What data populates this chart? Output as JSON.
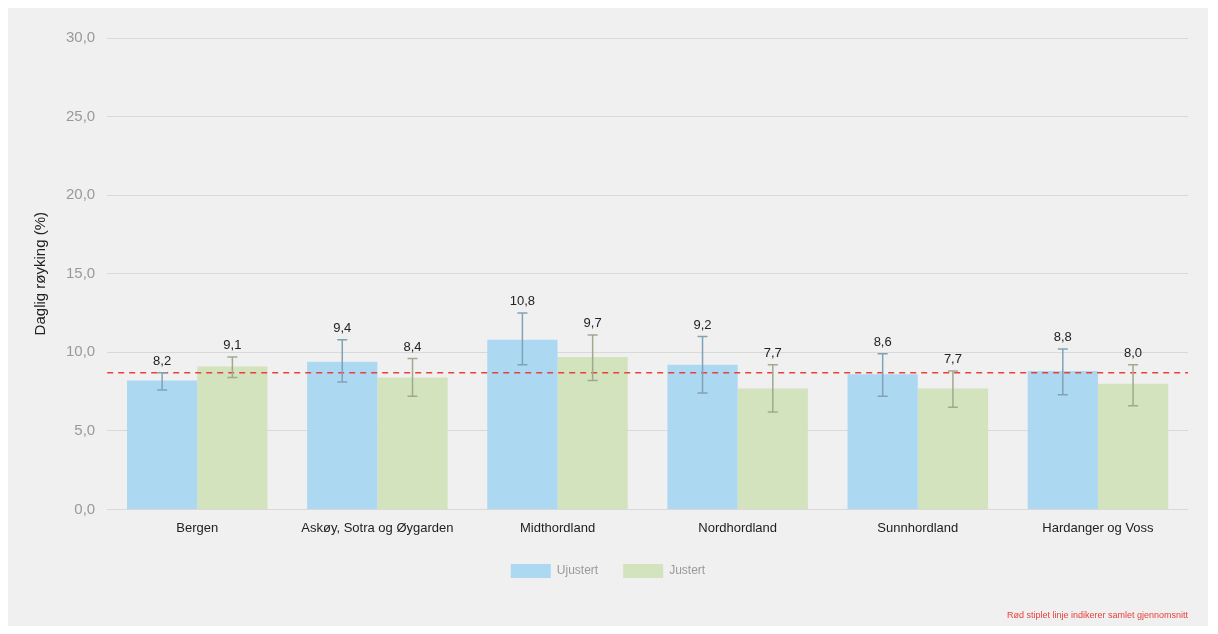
{
  "chart_data": {
    "type": "bar",
    "ylabel": "Daglig røyking (%)",
    "categories": [
      "Bergen",
      "Askøy, Sotra og Øygarden",
      "Midthordland",
      "Nordhordland",
      "Sunnhordland",
      "Hardanger og Voss"
    ],
    "series": [
      {
        "name": "Ujustert",
        "color": "#acd8f2",
        "values": [
          8.2,
          9.4,
          10.8,
          9.2,
          8.6,
          8.8
        ],
        "value_labels": [
          "8,2",
          "9,4",
          "10,8",
          "9,2",
          "8,6",
          "8,8"
        ],
        "errors": [
          [
            7.6,
            8.7
          ],
          [
            8.1,
            10.8
          ],
          [
            9.2,
            12.5
          ],
          [
            7.4,
            11.0
          ],
          [
            7.2,
            9.9
          ],
          [
            7.3,
            10.2
          ]
        ]
      },
      {
        "name": "Justert",
        "color": "#d3e3bd",
        "values": [
          9.1,
          8.4,
          9.7,
          7.7,
          7.7,
          8.0
        ],
        "value_labels": [
          "9,1",
          "8,4",
          "9,7",
          "7,7",
          "7,7",
          "8,0"
        ],
        "errors": [
          [
            8.4,
            9.7
          ],
          [
            7.2,
            9.6
          ],
          [
            8.2,
            11.1
          ],
          [
            6.2,
            9.2
          ],
          [
            6.5,
            8.8
          ],
          [
            6.6,
            9.2
          ]
        ]
      }
    ],
    "ylim": [
      0,
      30
    ],
    "yticks": [
      {
        "value": 0,
        "label": "0,0"
      },
      {
        "value": 5,
        "label": "5,0"
      },
      {
        "value": 10,
        "label": "10,0"
      },
      {
        "value": 15,
        "label": "15,0"
      },
      {
        "value": 20,
        "label": "20,0"
      },
      {
        "value": 25,
        "label": "25,0"
      },
      {
        "value": 30,
        "label": "30,0"
      }
    ],
    "grid": "y",
    "legend": "bottom",
    "ref_lines": [
      {
        "axis": "y",
        "value": 8.7,
        "color": "#e8413c",
        "line_style": "dashed"
      }
    ],
    "annotations": [
      "Rød stiplet linje indikerer samlet gjennomsnitt"
    ]
  }
}
